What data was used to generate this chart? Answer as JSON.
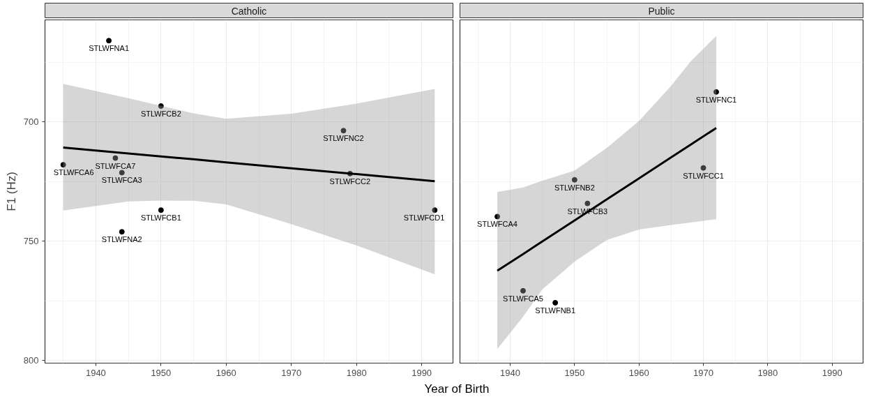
{
  "chart_data": [
    {
      "type": "scatter",
      "title": "Catholic",
      "ylabel": "F1 (Hz)",
      "xlabel": "Year of Birth",
      "xlim": [
        1932.2,
        1994.8
      ],
      "ylim": [
        801.1,
        657.3
      ],
      "xticks": [
        1940,
        1950,
        1960,
        1970,
        1980,
        1990
      ],
      "yticks": [
        700,
        750,
        800
      ],
      "grid": true,
      "series": [
        {
          "marker": "circle",
          "color": "#000000",
          "x": [
            1942,
            1950,
            1978,
            1935,
            1943,
            1944,
            1979,
            1950,
            1944,
            1992
          ],
          "values": [
            666.0,
            693.4,
            703.7,
            718.0,
            715.2,
            721.3,
            721.7,
            737.0,
            746.1,
            737.0
          ]
        },
        {
          "type": "line",
          "color": "#000000",
          "line_style": "solid",
          "x": [
            1935,
            1945,
            1950,
            1955,
            1960,
            1970,
            1980,
            1992
          ],
          "values": [
            710.8,
            713.3,
            714.5,
            715.7,
            717.0,
            719.5,
            721.9,
            724.9
          ],
          "lower": [
            684.1,
            690.1,
            693.3,
            696.5,
            698.7,
            696.6,
            692.4,
            686.2
          ],
          "upper": [
            737.2,
            733.4,
            733.0,
            733.1,
            734.6,
            742.9,
            751.8,
            763.9
          ]
        }
      ],
      "annotations": [
        {
          "text": "STLWFNA1",
          "x": 1942,
          "y": 666.0
        },
        {
          "text": "STLWFCB2",
          "x": 1950,
          "y": 693.4
        },
        {
          "text": "STLWFNC2",
          "x": 1978,
          "y": 703.7
        },
        {
          "text": "STLWFCA6",
          "x": 1935,
          "y": 718.0
        },
        {
          "text": "STLWFCA7",
          "x": 1943,
          "y": 715.2
        },
        {
          "text": "STLWFCA3",
          "x": 1944,
          "y": 721.3
        },
        {
          "text": "STLWFCC2",
          "x": 1979,
          "y": 721.7
        },
        {
          "text": "STLWFCB1",
          "x": 1950,
          "y": 737.0
        },
        {
          "text": "STLWFNA2",
          "x": 1944,
          "y": 746.1
        },
        {
          "text": "STLWFCD1",
          "x": 1992,
          "y": 737.0
        }
      ]
    },
    {
      "type": "scatter",
      "title": "Public",
      "xlim": [
        1932.2,
        1994.8
      ],
      "ylim": [
        801.1,
        657.3
      ],
      "xticks": [
        1940,
        1950,
        1960,
        1970,
        1980,
        1990
      ],
      "yticks": [
        700,
        750,
        800
      ],
      "tick_labels": "x",
      "grid": true,
      "series": [
        {
          "marker": "circle",
          "color": "#000000",
          "x": [
            1972,
            1970,
            1950,
            1952,
            1938,
            1942,
            1947
          ],
          "values": [
            687.5,
            719.3,
            724.3,
            734.2,
            739.7,
            770.8,
            775.8
          ]
        },
        {
          "type": "line",
          "color": "#000000",
          "line_style": "solid",
          "x": [
            1938,
            1942,
            1945,
            1950,
            1955,
            1960,
            1965,
            1968,
            1972
          ],
          "values": [
            762.4,
            755.4,
            750.1,
            741.3,
            732.5,
            723.7,
            714.9,
            709.6,
            702.6
          ],
          "lower": [
            729.4,
            727.5,
            724.7,
            720.4,
            710.9,
            699.7,
            684.9,
            674.8,
            664.0
          ],
          "upper": [
            795.2,
            781.7,
            770.2,
            758.6,
            749.5,
            745.1,
            743.2,
            742.2,
            740.8
          ]
        }
      ],
      "annotations": [
        {
          "text": "STLWFNC1",
          "x": 1972,
          "y": 687.5
        },
        {
          "text": "STLWFCC1",
          "x": 1970,
          "y": 719.3
        },
        {
          "text": "STLWFNB2",
          "x": 1950,
          "y": 724.3
        },
        {
          "text": "STLWFCB3",
          "x": 1952,
          "y": 734.2
        },
        {
          "text": "STLWFCA4",
          "x": 1938,
          "y": 739.7
        },
        {
          "text": "STLWFCA5",
          "x": 1942,
          "y": 770.8
        },
        {
          "text": "STLWFNB1",
          "x": 1947,
          "y": 775.8
        }
      ]
    }
  ]
}
